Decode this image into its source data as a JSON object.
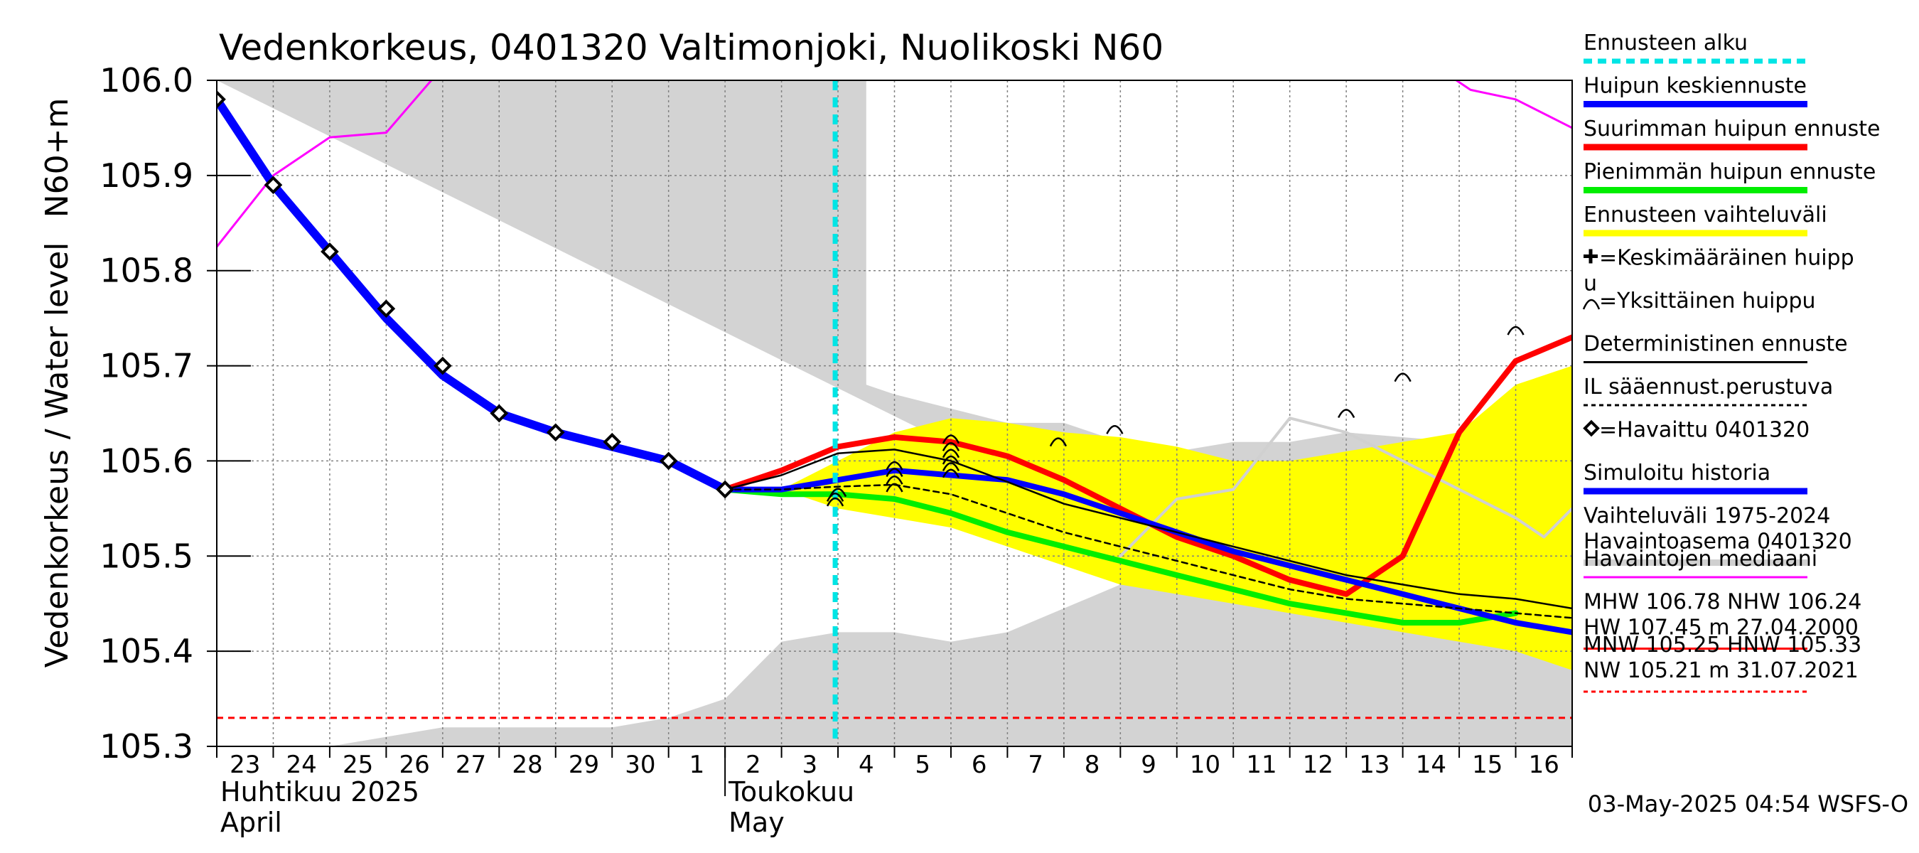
{
  "chart_data": {
    "type": "line",
    "title": "Vedenkorkeus, 0401320 Valtimonjoki, Nuolikoski N60",
    "ylabel_left": "Vedenkorkeus / Water level",
    "ylabel_unit": "N60+m",
    "ylim": [
      105.3,
      106.0
    ],
    "y_ticks": [
      "105.3",
      "105.4",
      "105.5",
      "105.6",
      "105.7",
      "105.8",
      "105.9",
      "106.0"
    ],
    "y_tick_values": [
      105.3,
      105.4,
      105.5,
      105.6,
      105.7,
      105.8,
      105.9,
      106.0
    ],
    "x_day_labels": [
      "23",
      "24",
      "25",
      "26",
      "27",
      "28",
      "29",
      "30",
      "1",
      "2",
      "3",
      "4",
      "5",
      "6",
      "7",
      "8",
      "9",
      "10",
      "11",
      "12",
      "13",
      "14",
      "15",
      "16"
    ],
    "x_month_labels": [
      {
        "fi": "Huhtikuu  2025",
        "en": "April",
        "day_index": 0
      },
      {
        "fi": "Toukokuu",
        "en": "May",
        "day_index": 9
      }
    ],
    "x_range_days": [
      0,
      24
    ],
    "forecast_start_day": 10.95,
    "hist_range_upper": [
      [
        0,
        106.0
      ],
      [
        11.5,
        106.0
      ],
      [
        11.5,
        105.68
      ],
      [
        12,
        105.67
      ],
      [
        14,
        105.64
      ],
      [
        15,
        105.64
      ],
      [
        16,
        105.62
      ],
      [
        17,
        105.61
      ],
      [
        18,
        105.62
      ],
      [
        19,
        105.62
      ],
      [
        20,
        105.63
      ],
      [
        22,
        105.62
      ],
      [
        24,
        105.63
      ]
    ],
    "hist_range_lower": [
      [
        24,
        105.3
      ],
      [
        0,
        105.3
      ],
      [
        2,
        105.3
      ],
      [
        3,
        105.31
      ],
      [
        4,
        105.32
      ],
      [
        6,
        105.32
      ],
      [
        7,
        105.32
      ],
      [
        8,
        105.33
      ],
      [
        9,
        105.35
      ],
      [
        9.5,
        105.38
      ],
      [
        10,
        105.41
      ],
      [
        11,
        105.42
      ],
      [
        12,
        105.42
      ],
      [
        13,
        105.41
      ],
      [
        14,
        105.42
      ],
      [
        16,
        105.47
      ],
      [
        17,
        105.5
      ]
    ],
    "forecast_range_upper": [
      [
        10,
        105.57
      ],
      [
        11,
        105.6
      ],
      [
        12,
        105.63
      ],
      [
        13,
        105.645
      ],
      [
        14,
        105.64
      ],
      [
        15,
        105.63
      ],
      [
        16,
        105.625
      ],
      [
        17,
        105.615
      ],
      [
        18,
        105.6
      ],
      [
        19,
        105.6
      ],
      [
        20,
        105.61
      ],
      [
        21,
        105.62
      ],
      [
        22,
        105.63
      ],
      [
        23,
        105.68
      ],
      [
        24,
        105.7
      ]
    ],
    "forecast_range_lower": [
      [
        24,
        105.38
      ],
      [
        23,
        105.4
      ],
      [
        22,
        105.41
      ],
      [
        21,
        105.42
      ],
      [
        20,
        105.43
      ],
      [
        19,
        105.44
      ],
      [
        18,
        105.45
      ],
      [
        17,
        105.46
      ],
      [
        16,
        105.47
      ],
      [
        15,
        105.49
      ],
      [
        14,
        105.51
      ],
      [
        13,
        105.53
      ],
      [
        12,
        105.54
      ],
      [
        11,
        105.55
      ],
      [
        10,
        105.57
      ]
    ],
    "white_region": [
      [
        16,
        105.3
      ],
      [
        16,
        105.5
      ],
      [
        17,
        105.56
      ],
      [
        18,
        105.57
      ],
      [
        19,
        105.645
      ],
      [
        20,
        105.64
      ],
      [
        21,
        105.61
      ],
      [
        22,
        105.58
      ],
      [
        23,
        105.55
      ],
      [
        24,
        105.53
      ],
      [
        24,
        105.3
      ]
    ],
    "series": [
      {
        "name": "Havaintojen mediaani",
        "color": "#ff00ff",
        "width": 3,
        "points": [
          [
            0,
            105.825
          ],
          [
            1,
            105.9
          ],
          [
            2,
            105.94
          ],
          [
            3,
            105.945
          ],
          [
            3.8,
            106.0
          ]
        ],
        "points2": [
          [
            21.95,
            106.0
          ],
          [
            22.2,
            105.99
          ],
          [
            23,
            105.98
          ],
          [
            24,
            105.95
          ]
        ]
      },
      {
        "name": "Vaihteluväli 1975-2024",
        "color": "#d0d0d0",
        "width": 4,
        "points": [
          [
            16,
            105.5
          ],
          [
            17,
            105.56
          ],
          [
            18,
            105.57
          ],
          [
            19,
            105.645
          ],
          [
            20,
            105.63
          ],
          [
            21,
            105.6
          ],
          [
            22,
            105.57
          ],
          [
            23,
            105.54
          ],
          [
            23.5,
            105.52
          ],
          [
            24,
            105.55
          ]
        ]
      },
      {
        "name": "Simuloitu historia",
        "color": "#0000ff",
        "width": 12,
        "points": [
          [
            0,
            105.98
          ],
          [
            1,
            105.89
          ],
          [
            2,
            105.82
          ],
          [
            3,
            105.75
          ],
          [
            4,
            105.69
          ],
          [
            5,
            105.65
          ],
          [
            6,
            105.63
          ],
          [
            7,
            105.615
          ],
          [
            8,
            105.6
          ],
          [
            9,
            105.57
          ]
        ]
      },
      {
        "name": "Pienimmän huipun ennuste",
        "color": "#00ee00",
        "width": 8,
        "points": [
          [
            9,
            105.57
          ],
          [
            10,
            105.565
          ],
          [
            11,
            105.565
          ],
          [
            12,
            105.56
          ],
          [
            13,
            105.545
          ],
          [
            14,
            105.525
          ],
          [
            15,
            105.51
          ],
          [
            16,
            105.495
          ],
          [
            17,
            105.48
          ],
          [
            18,
            105.465
          ],
          [
            19,
            105.45
          ],
          [
            20,
            105.44
          ],
          [
            21,
            105.43
          ],
          [
            22,
            105.43
          ],
          [
            23,
            105.44
          ]
        ]
      },
      {
        "name": "Suurimman huipun ennuste",
        "color": "#ff0000",
        "width": 8,
        "points": [
          [
            9,
            105.57
          ],
          [
            10,
            105.59
          ],
          [
            11,
            105.615
          ],
          [
            12,
            105.625
          ],
          [
            13,
            105.62
          ],
          [
            14,
            105.605
          ],
          [
            15,
            105.58
          ],
          [
            16,
            105.55
          ],
          [
            17,
            105.52
          ],
          [
            18,
            105.5
          ],
          [
            19,
            105.475
          ],
          [
            20,
            105.46
          ],
          [
            21,
            105.5
          ],
          [
            22,
            105.63
          ],
          [
            23,
            105.705
          ],
          [
            24,
            105.73
          ]
        ]
      },
      {
        "name": "Huipun keskiennuste",
        "color": "#0000ff",
        "width": 8,
        "points": [
          [
            9,
            105.57
          ],
          [
            10,
            105.57
          ],
          [
            11,
            105.58
          ],
          [
            12,
            105.59
          ],
          [
            13,
            105.585
          ],
          [
            14,
            105.58
          ],
          [
            15,
            105.565
          ],
          [
            16,
            105.545
          ],
          [
            17,
            105.525
          ],
          [
            18,
            105.505
          ],
          [
            19,
            105.49
          ],
          [
            20,
            105.475
          ],
          [
            21,
            105.46
          ],
          [
            22,
            105.445
          ],
          [
            23,
            105.43
          ],
          [
            24,
            105.42
          ]
        ]
      },
      {
        "name": "Deterministinen ennuste",
        "color": "#000000",
        "width": 2.5,
        "points": [
          [
            9,
            105.57
          ],
          [
            10,
            105.585
          ],
          [
            11,
            105.608
          ],
          [
            12,
            105.612
          ],
          [
            13,
            105.6
          ],
          [
            14,
            105.578
          ],
          [
            15,
            105.555
          ],
          [
            16,
            105.54
          ],
          [
            17,
            105.525
          ],
          [
            18,
            105.51
          ],
          [
            19,
            105.495
          ],
          [
            20,
            105.48
          ],
          [
            21,
            105.47
          ],
          [
            22,
            105.46
          ],
          [
            23,
            105.455
          ],
          [
            24,
            105.445
          ]
        ]
      },
      {
        "name": "IL sääennust.perustuva",
        "color": "#000000",
        "width": 2.5,
        "dash": "8,6",
        "points": [
          [
            9,
            105.57
          ],
          [
            10,
            105.57
          ],
          [
            11,
            105.573
          ],
          [
            12,
            105.575
          ],
          [
            13,
            105.565
          ],
          [
            14,
            105.545
          ],
          [
            15,
            105.525
          ],
          [
            16,
            105.51
          ],
          [
            17,
            105.495
          ],
          [
            18,
            105.48
          ],
          [
            19,
            105.465
          ],
          [
            20,
            105.455
          ],
          [
            21,
            105.45
          ],
          [
            22,
            105.445
          ],
          [
            23,
            105.44
          ],
          [
            24,
            105.435
          ]
        ]
      }
    ],
    "observed": [
      [
        0,
        105.98
      ],
      [
        1,
        105.89
      ],
      [
        2,
        105.82
      ],
      [
        3,
        105.76
      ],
      [
        4,
        105.7
      ],
      [
        5,
        105.65
      ],
      [
        6,
        105.63
      ],
      [
        7,
        105.62
      ],
      [
        8,
        105.6
      ],
      [
        9,
        105.57
      ]
    ],
    "peaks": [
      [
        10.95,
        105.557
      ],
      [
        10.95,
        105.562
      ],
      [
        11,
        105.567
      ],
      [
        12,
        105.572
      ],
      [
        12,
        105.58
      ],
      [
        12,
        105.588
      ],
      [
        12,
        105.595
      ],
      [
        13,
        105.587
      ],
      [
        13,
        105.594
      ],
      [
        13,
        105.601
      ],
      [
        13,
        105.608
      ],
      [
        13,
        105.615
      ],
      [
        13,
        105.623
      ],
      [
        14.9,
        105.62
      ],
      [
        15.9,
        105.633
      ],
      [
        20,
        105.65
      ],
      [
        21,
        105.688
      ],
      [
        23,
        105.737
      ]
    ],
    "threshold_line": {
      "value": 105.33,
      "color": "#ff0000"
    },
    "legend": [
      {
        "label": "Ennusteen alku",
        "swatch": "dashed",
        "color": "#00e5e5"
      },
      {
        "label": "Huipun keskiennuste",
        "swatch": "thick",
        "color": "#0000ff"
      },
      {
        "label": "Suurimman huipun ennuste",
        "swatch": "thick",
        "color": "#ff0000"
      },
      {
        "label": "Pienimmän huipun ennuste",
        "swatch": "thick",
        "color": "#00ee00"
      },
      {
        "label": "Ennusteen vaihteluväli",
        "swatch": "thick",
        "color": "#ffff00"
      },
      {
        "label": "=Keskimääräinen huipp",
        "label2": "u",
        "swatch": "plus",
        "color": "#000000"
      },
      {
        "label": "=Yksittäinen huippu",
        "swatch": "arc",
        "color": "#000000"
      },
      {
        "label": "Deterministinen ennuste",
        "swatch": "thin",
        "color": "#000000"
      },
      {
        "label": "IL sääennust.perustuva",
        "swatch": "dotted",
        "color": "#000000"
      },
      {
        "label": "=Havaittu 0401320",
        "swatch": "diamond",
        "color": "#000000"
      },
      {
        "label": "Simuloitu historia",
        "swatch": "thick",
        "color": "#0000ff"
      },
      {
        "label": "Vaihteluväli 1975-2024",
        "label2": " Havaintoasema 0401320",
        "swatch": "thick",
        "color": "#d0d0d0"
      },
      {
        "label": "Havaintojen mediaani",
        "swatch": "thin",
        "color": "#ff00ff"
      },
      {
        "label": "MHW 106.78 NHW 106.24",
        "label2": "HW 107.45 m 27.04.2000",
        "swatch": "thin",
        "color": "#ff0000"
      },
      {
        "label": "MNW 105.25 HNW 105.33",
        "label2": "NW 105.21 m 31.07.2021",
        "swatch": "dotted",
        "color": "#ff0000"
      }
    ],
    "footer": "03-May-2025 04:54 WSFS-O"
  }
}
